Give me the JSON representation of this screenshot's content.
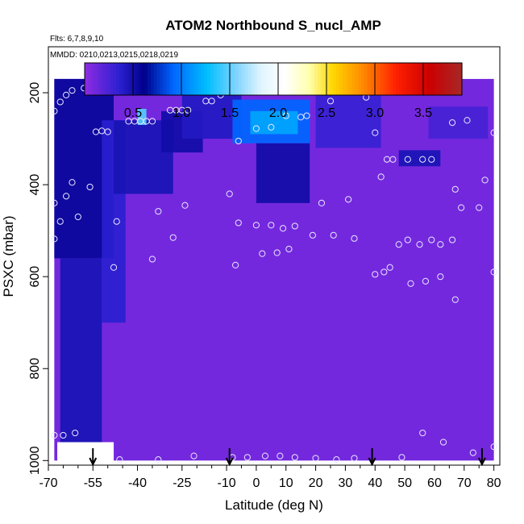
{
  "chart_data": {
    "type": "heatmap",
    "title": "ATOM2 Northbound S_nucl_AMP",
    "flights_note": "Flts: 6,7,8,9,10",
    "dates_note": "MMDD: 0210,0213,0215,0218,0219",
    "xlabel": "Latitude (deg N)",
    "ylabel": "PSXC (mbar)",
    "xlim": [
      -70,
      82
    ],
    "ylim": [
      1010,
      100
    ],
    "x_ticks": [
      "-70",
      "-55",
      "-40",
      "-25",
      "-10",
      "0",
      "10",
      "20",
      "30",
      "40",
      "50",
      "60",
      "70",
      "80"
    ],
    "x_tick_values": [
      -70,
      -55,
      -40,
      -25,
      -10,
      0,
      10,
      20,
      30,
      40,
      50,
      60,
      70,
      80
    ],
    "x_minor_ticks": [
      -65,
      -60,
      -50,
      -45,
      -35,
      -30,
      -20,
      -15,
      -5,
      5,
      15,
      25,
      35,
      45,
      55,
      65,
      75
    ],
    "y_ticks": [
      "200",
      "400",
      "600",
      "800",
      "1000"
    ],
    "y_tick_values": [
      200,
      400,
      600,
      800,
      1000
    ],
    "colorbar": {
      "range": [
        0,
        3.9
      ],
      "ticks": [
        "0.5",
        "1.0",
        "1.5",
        "2.0",
        "2.5",
        "3.0",
        "3.5"
      ],
      "tick_values": [
        0.5,
        1.0,
        1.5,
        2.0,
        2.5,
        3.0,
        3.5
      ],
      "stops": [
        {
          "v": 0.0,
          "color": "#8a2be2"
        },
        {
          "v": 0.35,
          "color": "#2a1fd0"
        },
        {
          "v": 0.6,
          "color": "#00008b"
        },
        {
          "v": 0.9,
          "color": "#0066ff"
        },
        {
          "v": 1.25,
          "color": "#00bfff"
        },
        {
          "v": 1.55,
          "color": "#7fd4ff"
        },
        {
          "v": 1.8,
          "color": "#dff4ff"
        },
        {
          "v": 2.05,
          "color": "#ffffff"
        },
        {
          "v": 2.3,
          "color": "#ffffb0"
        },
        {
          "v": 2.55,
          "color": "#ffd700"
        },
        {
          "v": 2.85,
          "color": "#ff8c00"
        },
        {
          "v": 3.2,
          "color": "#ff2000"
        },
        {
          "v": 3.55,
          "color": "#cc0000"
        },
        {
          "v": 3.9,
          "color": "#a52a2a"
        }
      ]
    },
    "field_extent": {
      "lat": [
        -68,
        80
      ],
      "pressure": [
        170,
        1000
      ]
    },
    "field_regions": [
      {
        "lat": [
          -68,
          -48
        ],
        "p": [
          170,
          560
        ],
        "value": 0.55
      },
      {
        "lat": [
          -66,
          -52
        ],
        "p": [
          560,
          960
        ],
        "value": 0.45
      },
      {
        "lat": [
          -52,
          -44
        ],
        "p": [
          260,
          700
        ],
        "value": 0.35
      },
      {
        "lat": [
          -48,
          -28
        ],
        "p": [
          260,
          420
        ],
        "value": 0.45
      },
      {
        "lat": [
          -40,
          -37
        ],
        "p": [
          235,
          270
        ],
        "value": 1.45
      },
      {
        "lat": [
          -32,
          -18
        ],
        "p": [
          240,
          330
        ],
        "value": 0.5
      },
      {
        "lat": [
          -25,
          -5
        ],
        "p": [
          170,
          300
        ],
        "value": 0.4
      },
      {
        "lat": [
          -8,
          18
        ],
        "p": [
          215,
          310
        ],
        "value": 0.9
      },
      {
        "lat": [
          -2,
          14
        ],
        "p": [
          240,
          290
        ],
        "value": 1.15
      },
      {
        "lat": [
          0,
          18
        ],
        "p": [
          310,
          440
        ],
        "value": 0.5
      },
      {
        "lat": [
          20,
          42
        ],
        "p": [
          180,
          320
        ],
        "value": 0.3
      },
      {
        "lat": [
          48,
          62
        ],
        "p": [
          325,
          360
        ],
        "value": 0.45
      },
      {
        "lat": [
          58,
          78
        ],
        "p": [
          230,
          300
        ],
        "value": 0.25
      }
    ],
    "arrows_lat": [
      -55,
      -9,
      39,
      76
    ],
    "sample_points": [
      {
        "lat": -68,
        "p": 240
      },
      {
        "lat": -66,
        "p": 220
      },
      {
        "lat": -64,
        "p": 205
      },
      {
        "lat": -62,
        "p": 195
      },
      {
        "lat": -58,
        "p": 190
      },
      {
        "lat": -56,
        "p": 188
      },
      {
        "lat": -54,
        "p": 285
      },
      {
        "lat": -52,
        "p": 283
      },
      {
        "lat": -50,
        "p": 285
      },
      {
        "lat": -43,
        "p": 262
      },
      {
        "lat": -41,
        "p": 262
      },
      {
        "lat": -39,
        "p": 262
      },
      {
        "lat": -37,
        "p": 262
      },
      {
        "lat": -35,
        "p": 262
      },
      {
        "lat": -29,
        "p": 238
      },
      {
        "lat": -27,
        "p": 238
      },
      {
        "lat": -25,
        "p": 238
      },
      {
        "lat": -23,
        "p": 238
      },
      {
        "lat": -17,
        "p": 218
      },
      {
        "lat": -15,
        "p": 218
      },
      {
        "lat": -12,
        "p": 205
      },
      {
        "lat": -6,
        "p": 305
      },
      {
        "lat": 0,
        "p": 278
      },
      {
        "lat": 5,
        "p": 275
      },
      {
        "lat": 10,
        "p": 250
      },
      {
        "lat": 15,
        "p": 253
      },
      {
        "lat": 17,
        "p": 250
      },
      {
        "lat": 25,
        "p": 218
      },
      {
        "lat": 37,
        "p": 210
      },
      {
        "lat": 40,
        "p": 287
      },
      {
        "lat": 42,
        "p": 383
      },
      {
        "lat": 44,
        "p": 345
      },
      {
        "lat": 46,
        "p": 345
      },
      {
        "lat": 51,
        "p": 345
      },
      {
        "lat": 56,
        "p": 345
      },
      {
        "lat": 59,
        "p": 345
      },
      {
        "lat": 66,
        "p": 265
      },
      {
        "lat": 71,
        "p": 260
      },
      {
        "lat": 80,
        "p": 287
      },
      {
        "lat": -68,
        "p": 440
      },
      {
        "lat": -66,
        "p": 480
      },
      {
        "lat": -64,
        "p": 425
      },
      {
        "lat": -62,
        "p": 395
      },
      {
        "lat": -60,
        "p": 470
      },
      {
        "lat": -56,
        "p": 405
      },
      {
        "lat": -47,
        "p": 480
      },
      {
        "lat": -33,
        "p": 458
      },
      {
        "lat": -24,
        "p": 445
      },
      {
        "lat": -9,
        "p": 420
      },
      {
        "lat": -6,
        "p": 483
      },
      {
        "lat": 0,
        "p": 488
      },
      {
        "lat": 5,
        "p": 488
      },
      {
        "lat": 9,
        "p": 495
      },
      {
        "lat": 13,
        "p": 490
      },
      {
        "lat": 19,
        "p": 510
      },
      {
        "lat": 22,
        "p": 440
      },
      {
        "lat": 26,
        "p": 510
      },
      {
        "lat": 31,
        "p": 432
      },
      {
        "lat": 33,
        "p": 517
      },
      {
        "lat": -68,
        "p": 518
      },
      {
        "lat": -35,
        "p": 562
      },
      {
        "lat": -28,
        "p": 515
      },
      {
        "lat": 2,
        "p": 550
      },
      {
        "lat": 7,
        "p": 548
      },
      {
        "lat": 11,
        "p": 540
      },
      {
        "lat": 48,
        "p": 530
      },
      {
        "lat": 51,
        "p": 520
      },
      {
        "lat": 55,
        "p": 530
      },
      {
        "lat": 59,
        "p": 520
      },
      {
        "lat": 62,
        "p": 530
      },
      {
        "lat": 66,
        "p": 520
      },
      {
        "lat": 67,
        "p": 410
      },
      {
        "lat": 69,
        "p": 450
      },
      {
        "lat": 75,
        "p": 450
      },
      {
        "lat": 77,
        "p": 390
      },
      {
        "lat": 80,
        "p": 590
      },
      {
        "lat": 40,
        "p": 595
      },
      {
        "lat": 43,
        "p": 590
      },
      {
        "lat": 52,
        "p": 615
      },
      {
        "lat": 57,
        "p": 610
      },
      {
        "lat": 62,
        "p": 600
      },
      {
        "lat": 67,
        "p": 650
      },
      {
        "lat": -7,
        "p": 575
      },
      {
        "lat": -48,
        "p": 580
      },
      {
        "lat": -68,
        "p": 945
      },
      {
        "lat": -65,
        "p": 945
      },
      {
        "lat": -61,
        "p": 940
      },
      {
        "lat": 56,
        "p": 940
      },
      {
        "lat": 63,
        "p": 960
      },
      {
        "lat": 73,
        "p": 983
      },
      {
        "lat": -46,
        "p": 998
      },
      {
        "lat": -33,
        "p": 998
      },
      {
        "lat": -21,
        "p": 990
      },
      {
        "lat": -8,
        "p": 993
      },
      {
        "lat": -3,
        "p": 993
      },
      {
        "lat": 3,
        "p": 990
      },
      {
        "lat": 8,
        "p": 990
      },
      {
        "lat": 13,
        "p": 993
      },
      {
        "lat": 20,
        "p": 995
      },
      {
        "lat": 27,
        "p": 998
      },
      {
        "lat": 33,
        "p": 995
      },
      {
        "lat": 49,
        "p": 993
      },
      {
        "lat": 80,
        "p": 970
      },
      {
        "lat": 45,
        "p": 580
      }
    ]
  }
}
